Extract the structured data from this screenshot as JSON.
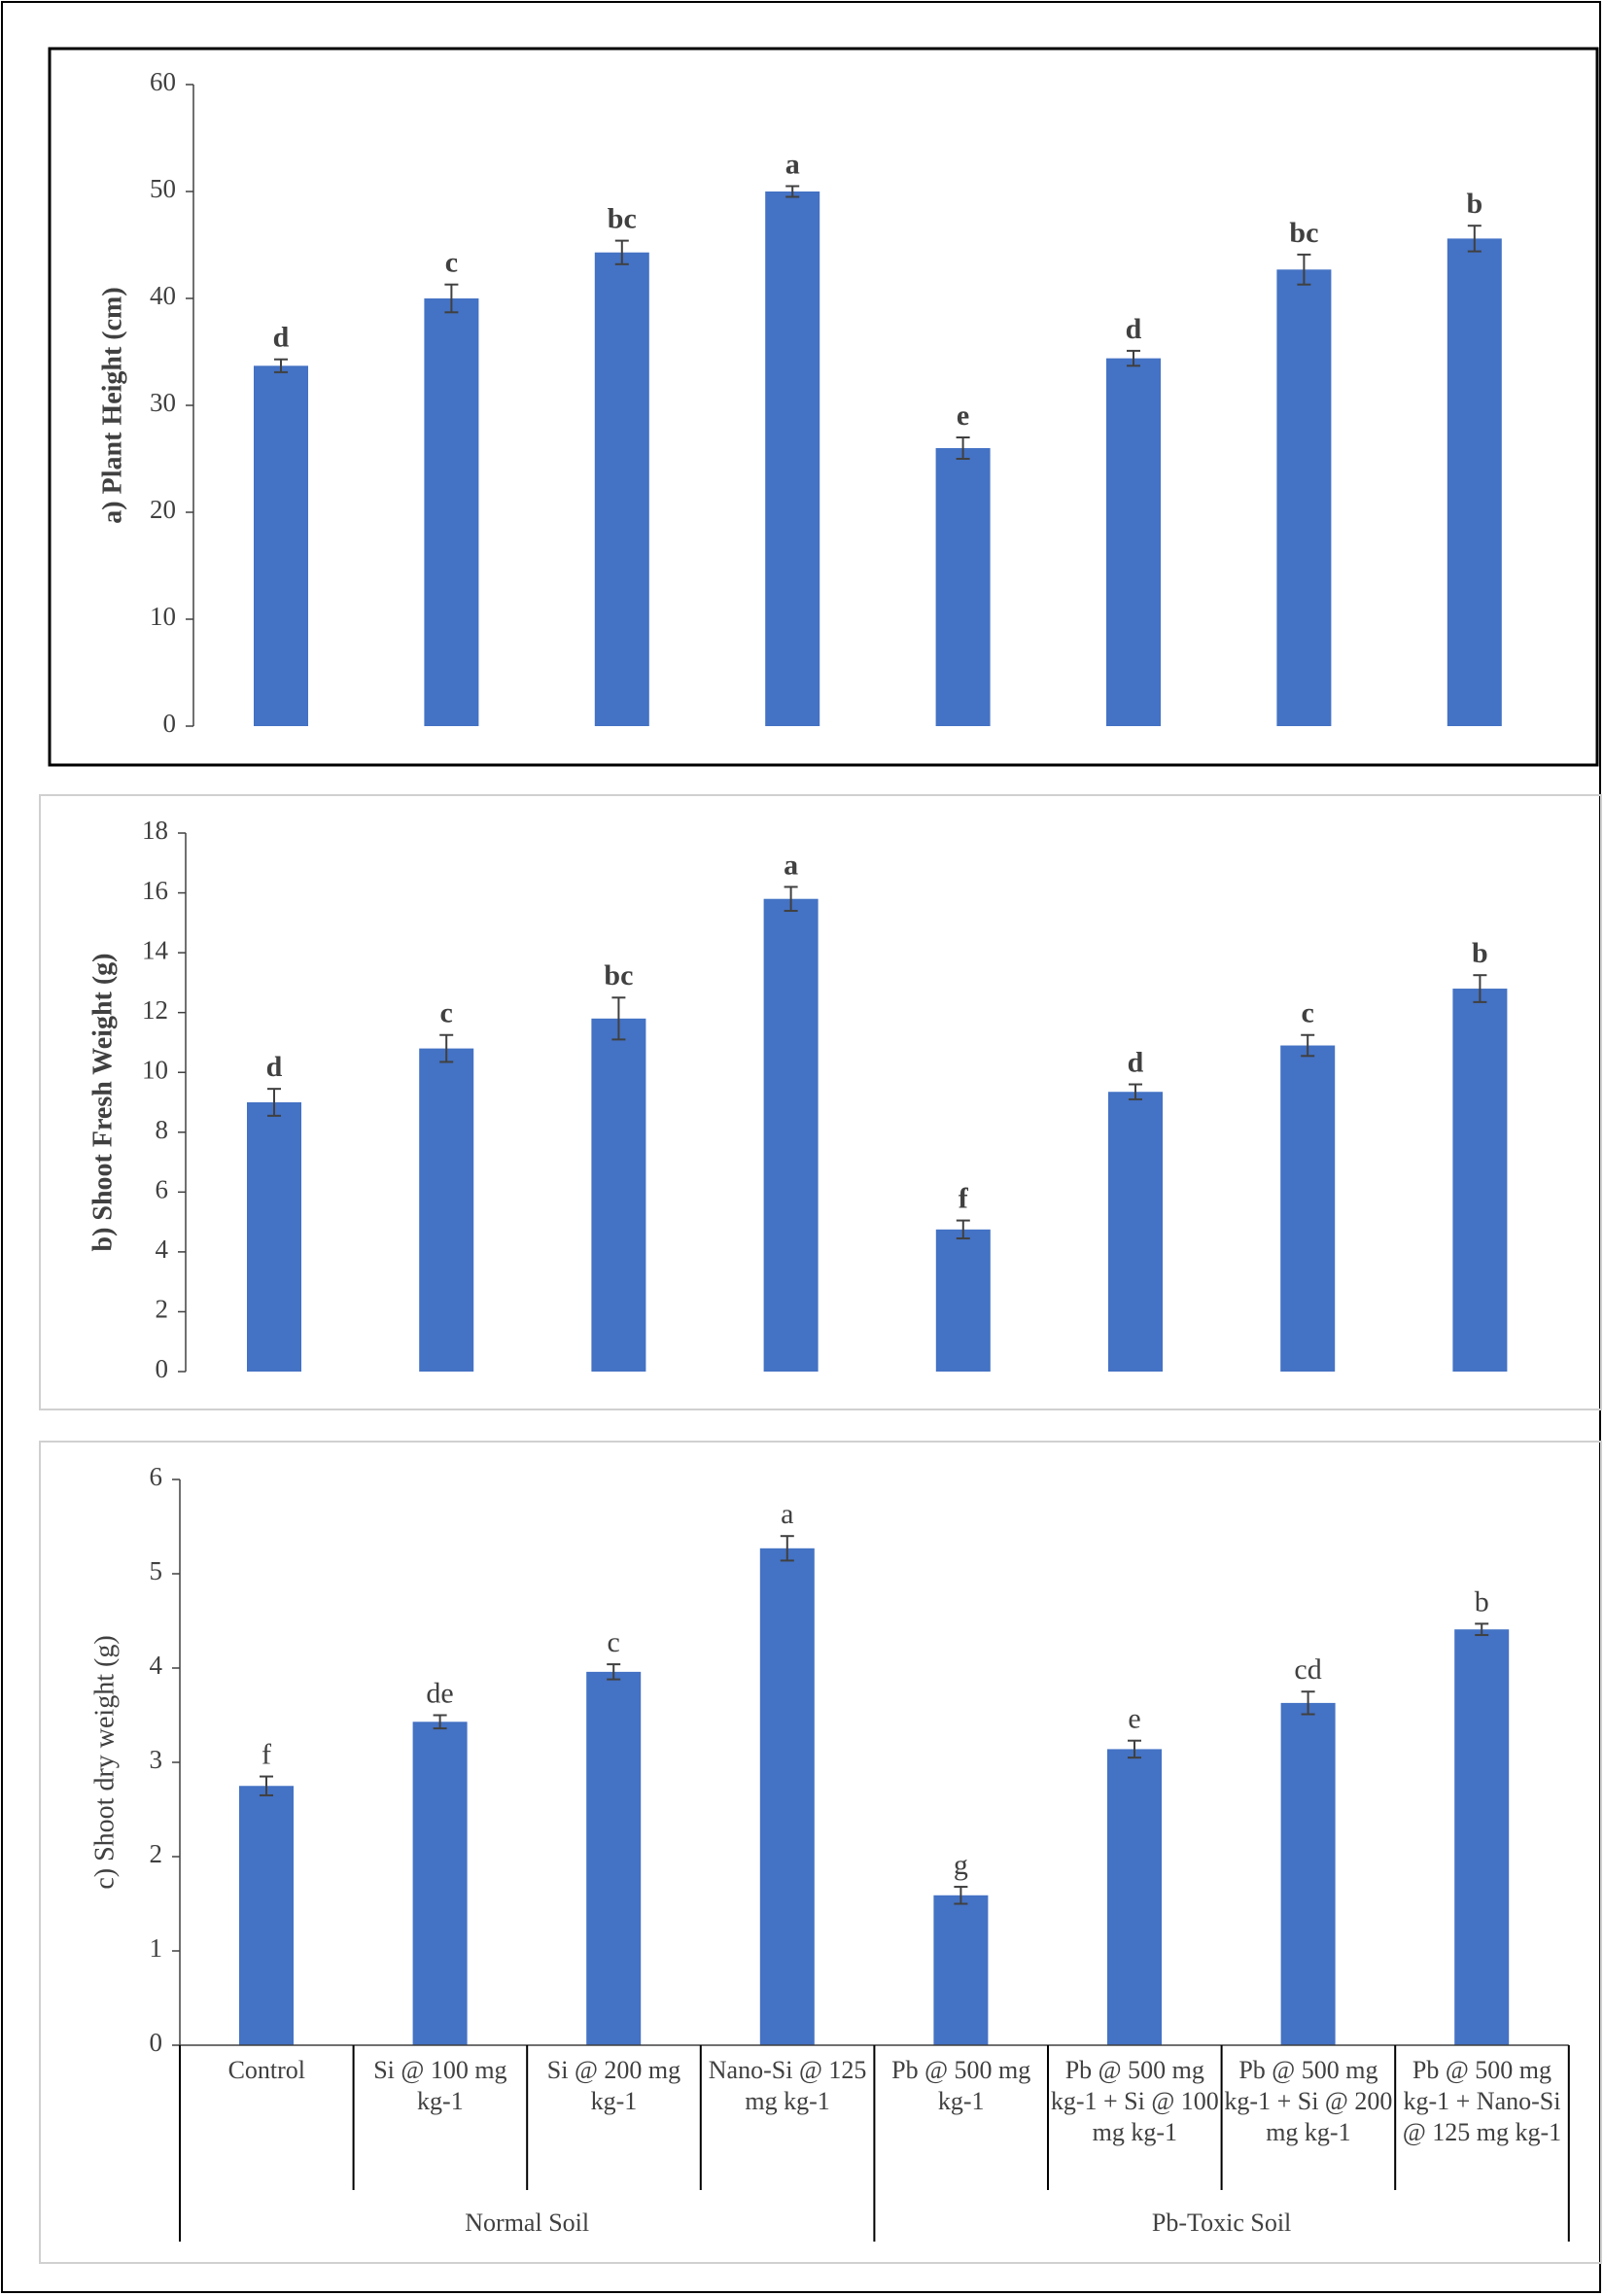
{
  "chart_data": [
    {
      "type": "bar",
      "y_label": "a) Plant Height (cm)",
      "color": "#4472c4",
      "values": [
        33.7,
        40.0,
        44.3,
        50.0,
        26.0,
        34.4,
        42.7,
        45.6
      ],
      "errors": [
        0.6,
        1.3,
        1.1,
        0.5,
        1.0,
        0.7,
        1.4,
        1.2
      ],
      "letters": [
        "d",
        "c",
        "bc",
        "a",
        "e",
        "d",
        "bc",
        "b"
      ],
      "ylim": [
        0,
        60
      ],
      "yticks": [
        0,
        10,
        20,
        30,
        40,
        50,
        60
      ]
    },
    {
      "type": "bar",
      "y_label": "b) Shoot Fresh Weight (g)",
      "color": "#4472c4",
      "values": [
        9.0,
        10.8,
        11.8,
        15.8,
        4.75,
        9.35,
        10.9,
        12.8
      ],
      "errors": [
        0.45,
        0.45,
        0.7,
        0.4,
        0.3,
        0.25,
        0.35,
        0.45
      ],
      "letters": [
        "d",
        "c",
        "bc",
        "a",
        "f",
        "d",
        "c",
        "b"
      ],
      "ylim": [
        0,
        18
      ],
      "yticks": [
        0,
        2,
        4,
        6,
        8,
        10,
        12,
        14,
        16,
        18
      ]
    },
    {
      "type": "bar",
      "y_label": "c) Shoot dry weight (g)",
      "color": "#4472c4",
      "categories": [
        "Control",
        "Si @ 100 mg kg-1",
        "Si @ 200 mg kg-1",
        "Nano-Si @ 125 mg kg-1",
        "Pb @ 500 mg kg-1",
        "Pb @ 500 mg kg-1 + Si @ 100 mg kg-1",
        "Pb @ 500 mg kg-1 + Si @ 200 mg kg-1",
        "Pb @ 500 mg kg-1 + Nano-Si @ 125 mg kg-1"
      ],
      "groups": [
        "Normal Soil",
        "Pb-Toxic Soil"
      ],
      "values": [
        2.75,
        3.43,
        3.96,
        5.27,
        1.59,
        3.14,
        3.63,
        4.41
      ],
      "errors": [
        0.1,
        0.07,
        0.08,
        0.13,
        0.09,
        0.09,
        0.12,
        0.06
      ],
      "letters": [
        "f",
        "de",
        "c",
        "a",
        "g",
        "e",
        "cd",
        "b"
      ],
      "ylim": [
        0,
        6
      ],
      "yticks": [
        0,
        1,
        2,
        3,
        4,
        5,
        6
      ]
    }
  ]
}
